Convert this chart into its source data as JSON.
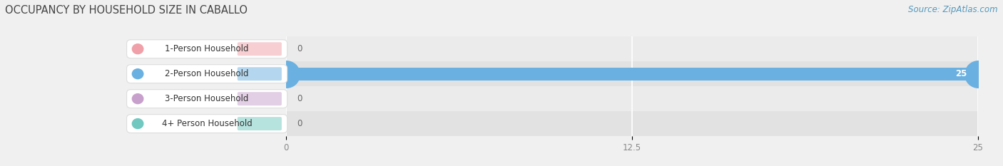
{
  "title": "OCCUPANCY BY HOUSEHOLD SIZE IN CABALLO",
  "source": "Source: ZipAtlas.com",
  "categories": [
    "1-Person Household",
    "2-Person Household",
    "3-Person Household",
    "4+ Person Household"
  ],
  "values": [
    0,
    25,
    0,
    0
  ],
  "bar_colors": [
    "#f0a0a8",
    "#6ab0e0",
    "#c8a0cc",
    "#70c8c0"
  ],
  "pill_circle_colors": [
    "#f0a0a8",
    "#6ab0e0",
    "#c8a0cc",
    "#70c8c0"
  ],
  "xlim": [
    0,
    25
  ],
  "xticks": [
    0,
    12.5,
    25
  ],
  "bar_height": 0.52,
  "row_bg_colors": [
    "#eeeeee",
    "#e6e6e6",
    "#eeeeee",
    "#e6e6e6"
  ],
  "background_color": "#f0f0f0",
  "title_fontsize": 10.5,
  "label_fontsize": 8.5,
  "value_fontsize": 8.5,
  "source_fontsize": 8.5,
  "title_color": "#444444",
  "label_color": "#333333",
  "tick_color": "#888888",
  "source_color": "#5599bb",
  "value_color_inside": "#ffffff",
  "value_color_outside": "#666666"
}
